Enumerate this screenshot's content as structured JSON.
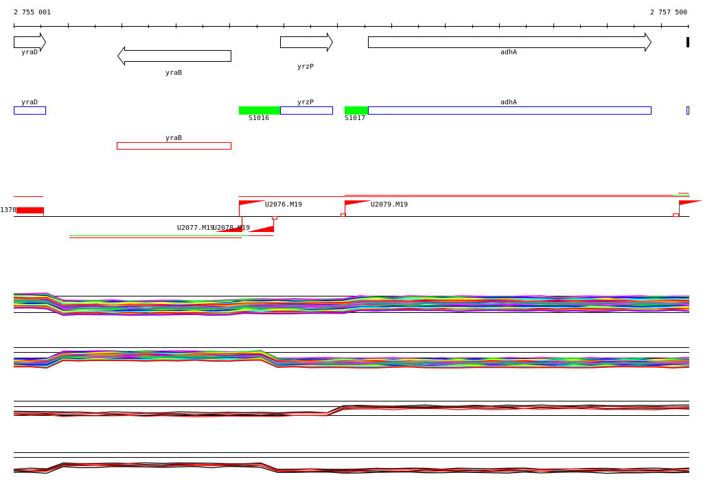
{
  "coords": {
    "start": "2 755 001",
    "end": "2 757 500"
  },
  "genes": [
    {
      "name": "yraD",
      "strand": "+"
    },
    {
      "name": "yraB",
      "strand": "-"
    },
    {
      "name": "yrzP",
      "strand": "+"
    },
    {
      "name": "adhA",
      "strand": "+"
    }
  ],
  "features": {
    "yraD": "yraD",
    "yrzP": "yrzP",
    "adhA": "adhA",
    "yraB": "yraB",
    "s1016": "S1016",
    "s1017": "S1017"
  },
  "transcripts": {
    "left": "1378",
    "u2076": "U2076.M19",
    "u2079": "U2079.M19",
    "u2077": "U2077.M19",
    "u2078": "U2078.M19"
  },
  "colors": {
    "forward": "#0000ff",
    "reverse": "#ff0000",
    "segment": "#00ff00",
    "signal": "#ff0000"
  }
}
